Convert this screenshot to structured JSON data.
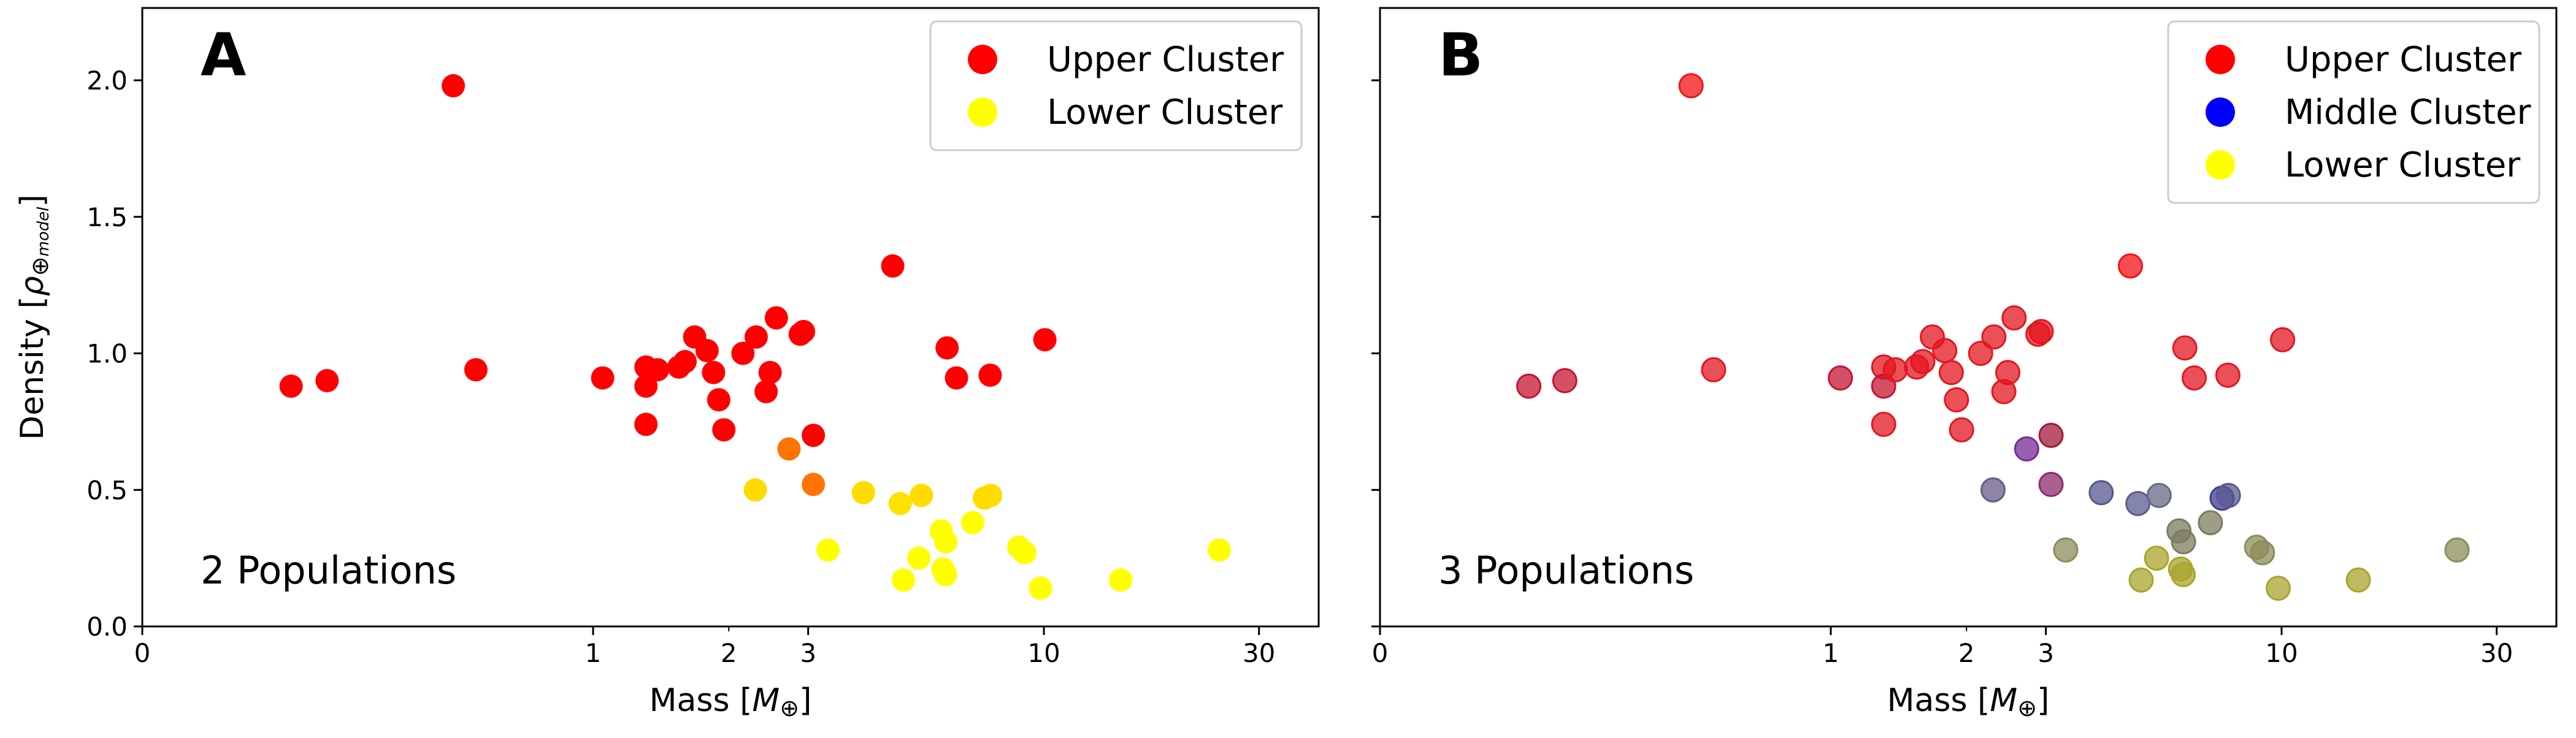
{
  "chart_data": [
    {
      "type": "scatter",
      "panel_label": "A",
      "annotation": "2 Populations",
      "xlabel": "Mass [M⊕]",
      "ylabel": "Density [ρ⊕model]",
      "x_scale": "symlog",
      "xlim": [
        0,
        50
      ],
      "ylim": [
        0,
        2.27
      ],
      "x_ticks": [
        0,
        1,
        3,
        10,
        30
      ],
      "x_tick_labels": [
        "0",
        "1",
        "3",
        "10",
        "30"
      ],
      "x_minor_ticks": [
        2
      ],
      "x_minor_tick_labels": [
        "2"
      ],
      "y_ticks": [
        0.0,
        0.5,
        1.0,
        1.5,
        2.0
      ],
      "y_tick_labels": [
        "0.0",
        "0.5",
        "1.0",
        "1.5",
        "2.0"
      ],
      "grid": false,
      "legend_position": "top-right",
      "legend": [
        {
          "label": "Upper Cluster",
          "color": "#ff0000"
        },
        {
          "label": "Lower Cluster",
          "color": "#ffff00"
        }
      ],
      "series": [
        {
          "points": [
            {
              "x": 0.33,
              "y": 0.88,
              "color": "#ff0000"
            },
            {
              "x": 0.41,
              "y": 0.9,
              "color": "#ff0000"
            },
            {
              "x": 0.69,
              "y": 1.98,
              "color": "#ff0000"
            },
            {
              "x": 0.74,
              "y": 0.94,
              "color": "#ff0000"
            },
            {
              "x": 1.05,
              "y": 0.91,
              "color": "#ff0000"
            },
            {
              "x": 1.31,
              "y": 0.95,
              "color": "#ff0000"
            },
            {
              "x": 1.31,
              "y": 0.88,
              "color": "#ff0000"
            },
            {
              "x": 1.31,
              "y": 0.74,
              "color": "#ff0000"
            },
            {
              "x": 1.39,
              "y": 0.94,
              "color": "#ff0000"
            },
            {
              "x": 1.55,
              "y": 0.95,
              "color": "#ff0000"
            },
            {
              "x": 1.6,
              "y": 0.97,
              "color": "#ff0000"
            },
            {
              "x": 1.68,
              "y": 1.06,
              "color": "#ff0000"
            },
            {
              "x": 1.79,
              "y": 1.01,
              "color": "#ff0000"
            },
            {
              "x": 1.85,
              "y": 0.93,
              "color": "#ff0000"
            },
            {
              "x": 1.9,
              "y": 0.83,
              "color": "#ff0000"
            },
            {
              "x": 1.95,
              "y": 0.72,
              "color": "#ff0000"
            },
            {
              "x": 2.15,
              "y": 1.0,
              "color": "#ff0000"
            },
            {
              "x": 2.3,
              "y": 1.06,
              "color": "#ff0000"
            },
            {
              "x": 2.42,
              "y": 0.86,
              "color": "#ff0000"
            },
            {
              "x": 2.47,
              "y": 0.93,
              "color": "#ff0000"
            },
            {
              "x": 2.55,
              "y": 1.13,
              "color": "#ff0000"
            },
            {
              "x": 2.88,
              "y": 1.07,
              "color": "#ff0000"
            },
            {
              "x": 2.93,
              "y": 1.08,
              "color": "#ff0000"
            },
            {
              "x": 3.08,
              "y": 0.7,
              "color": "#ff0000"
            },
            {
              "x": 4.62,
              "y": 1.32,
              "color": "#ff0000"
            },
            {
              "x": 6.1,
              "y": 1.02,
              "color": "#ff0000"
            },
            {
              "x": 6.4,
              "y": 0.91,
              "color": "#ff0000"
            },
            {
              "x": 7.6,
              "y": 0.92,
              "color": "#ff0000"
            },
            {
              "x": 10.05,
              "y": 1.05,
              "color": "#ff0000"
            },
            {
              "x": 2.72,
              "y": 0.65,
              "color": "#ff7400"
            },
            {
              "x": 3.08,
              "y": 0.52,
              "color": "#ff7400"
            },
            {
              "x": 2.29,
              "y": 0.5,
              "color": "#ffdc00"
            },
            {
              "x": 3.98,
              "y": 0.49,
              "color": "#ffdc00"
            },
            {
              "x": 5.35,
              "y": 0.48,
              "color": "#ffdc00"
            },
            {
              "x": 7.38,
              "y": 0.47,
              "color": "#ffdc00"
            },
            {
              "x": 7.62,
              "y": 0.48,
              "color": "#ffdc00"
            },
            {
              "x": 4.8,
              "y": 0.45,
              "color": "#ffe100"
            },
            {
              "x": 3.32,
              "y": 0.28,
              "color": "#ffff00"
            },
            {
              "x": 4.88,
              "y": 0.17,
              "color": "#ffff00"
            },
            {
              "x": 5.28,
              "y": 0.25,
              "color": "#ffff00"
            },
            {
              "x": 5.92,
              "y": 0.35,
              "color": "#ffff00"
            },
            {
              "x": 5.97,
              "y": 0.21,
              "color": "#ffff00"
            },
            {
              "x": 6.05,
              "y": 0.19,
              "color": "#ffff00"
            },
            {
              "x": 6.06,
              "y": 0.31,
              "color": "#ffff00"
            },
            {
              "x": 6.95,
              "y": 0.38,
              "color": "#ffff00"
            },
            {
              "x": 8.8,
              "y": 0.29,
              "color": "#ffff00"
            },
            {
              "x": 9.07,
              "y": 0.27,
              "color": "#ffff00"
            },
            {
              "x": 9.83,
              "y": 0.14,
              "color": "#ffff00"
            },
            {
              "x": 14.8,
              "y": 0.17,
              "color": "#ffff00"
            },
            {
              "x": 24.5,
              "y": 0.28,
              "color": "#ffff00"
            }
          ]
        }
      ]
    },
    {
      "type": "scatter",
      "panel_label": "B",
      "annotation": "3 Populations",
      "xlabel": "Mass [M⊕]",
      "ylabel": "",
      "x_scale": "symlog",
      "xlim": [
        0,
        50
      ],
      "ylim": [
        0,
        2.27
      ],
      "x_ticks": [
        0,
        1,
        3,
        10,
        30
      ],
      "x_tick_labels": [
        "0",
        "1",
        "3",
        "10",
        "30"
      ],
      "x_minor_ticks": [
        2
      ],
      "x_minor_tick_labels": [
        "2"
      ],
      "y_ticks": [
        0.0,
        0.5,
        1.0,
        1.5,
        2.0
      ],
      "y_tick_labels": [
        "",
        "",
        "",
        "",
        ""
      ],
      "grid": false,
      "legend_position": "top-right",
      "legend": [
        {
          "label": "Upper Cluster",
          "color": "#ff0000"
        },
        {
          "label": "Middle Cluster",
          "color": "#0000ff"
        },
        {
          "label": "Lower Cluster",
          "color": "#ffff00"
        }
      ],
      "series": [
        {
          "points": [
            {
              "x": 0.33,
              "y": 0.88,
              "color": "#c41532"
            },
            {
              "x": 0.41,
              "y": 0.9,
              "color": "#c41532"
            },
            {
              "x": 0.69,
              "y": 1.98,
              "color": "#f21216"
            },
            {
              "x": 0.74,
              "y": 0.94,
              "color": "#e3161f"
            },
            {
              "x": 1.05,
              "y": 0.91,
              "color": "#c41532"
            },
            {
              "x": 1.31,
              "y": 0.95,
              "color": "#e3161f"
            },
            {
              "x": 1.31,
              "y": 0.88,
              "color": "#c41532"
            },
            {
              "x": 1.31,
              "y": 0.74,
              "color": "#e3161f"
            },
            {
              "x": 1.39,
              "y": 0.94,
              "color": "#e3161f"
            },
            {
              "x": 1.55,
              "y": 0.95,
              "color": "#e3161f"
            },
            {
              "x": 1.6,
              "y": 0.97,
              "color": "#e3161f"
            },
            {
              "x": 1.68,
              "y": 1.06,
              "color": "#e3161f"
            },
            {
              "x": 1.79,
              "y": 1.01,
              "color": "#e3161f"
            },
            {
              "x": 1.85,
              "y": 0.93,
              "color": "#e3161f"
            },
            {
              "x": 1.9,
              "y": 0.83,
              "color": "#e3161f"
            },
            {
              "x": 1.95,
              "y": 0.72,
              "color": "#e3161f"
            },
            {
              "x": 2.15,
              "y": 1.0,
              "color": "#e3161f"
            },
            {
              "x": 2.3,
              "y": 1.06,
              "color": "#e3161f"
            },
            {
              "x": 2.42,
              "y": 0.86,
              "color": "#e3161f"
            },
            {
              "x": 2.47,
              "y": 0.93,
              "color": "#e3161f"
            },
            {
              "x": 2.55,
              "y": 1.13,
              "color": "#e3161f"
            },
            {
              "x": 2.88,
              "y": 1.07,
              "color": "#e3161f"
            },
            {
              "x": 2.93,
              "y": 1.08,
              "color": "#e3161f"
            },
            {
              "x": 3.08,
              "y": 0.7,
              "color": "#a31a3a"
            },
            {
              "x": 4.62,
              "y": 1.32,
              "color": "#f21216"
            },
            {
              "x": 6.1,
              "y": 1.02,
              "color": "#e3161f"
            },
            {
              "x": 6.4,
              "y": 0.91,
              "color": "#e3161f"
            },
            {
              "x": 7.6,
              "y": 0.92,
              "color": "#e3161f"
            },
            {
              "x": 10.05,
              "y": 1.05,
              "color": "#e3161f"
            },
            {
              "x": 2.72,
              "y": 0.65,
              "color": "#7a2a96"
            },
            {
              "x": 3.08,
              "y": 0.52,
              "color": "#8c2c6c"
            },
            {
              "x": 2.29,
              "y": 0.5,
              "color": "#6a5a8a"
            },
            {
              "x": 3.98,
              "y": 0.49,
              "color": "#565890"
            },
            {
              "x": 4.8,
              "y": 0.45,
              "color": "#5a5c8e"
            },
            {
              "x": 5.35,
              "y": 0.48,
              "color": "#666a86"
            },
            {
              "x": 7.38,
              "y": 0.47,
              "color": "#3e3e92"
            },
            {
              "x": 7.62,
              "y": 0.48,
              "color": "#5a5a92"
            },
            {
              "x": 3.32,
              "y": 0.28,
              "color": "#8c8c5a"
            },
            {
              "x": 4.88,
              "y": 0.17,
              "color": "#a8a42e"
            },
            {
              "x": 5.28,
              "y": 0.25,
              "color": "#a8a42e"
            },
            {
              "x": 5.92,
              "y": 0.35,
              "color": "#7c7c60"
            },
            {
              "x": 5.97,
              "y": 0.21,
              "color": "#a8a42e"
            },
            {
              "x": 6.05,
              "y": 0.19,
              "color": "#a8a42e"
            },
            {
              "x": 6.06,
              "y": 0.31,
              "color": "#7c7c60"
            },
            {
              "x": 6.95,
              "y": 0.38,
              "color": "#7c7c60"
            },
            {
              "x": 8.8,
              "y": 0.29,
              "color": "#8c8c5a"
            },
            {
              "x": 9.07,
              "y": 0.27,
              "color": "#8c8c5a"
            },
            {
              "x": 9.83,
              "y": 0.14,
              "color": "#a8a42e"
            },
            {
              "x": 14.8,
              "y": 0.17,
              "color": "#a8a42e"
            },
            {
              "x": 24.5,
              "y": 0.28,
              "color": "#8c8c5a"
            }
          ]
        }
      ]
    }
  ]
}
